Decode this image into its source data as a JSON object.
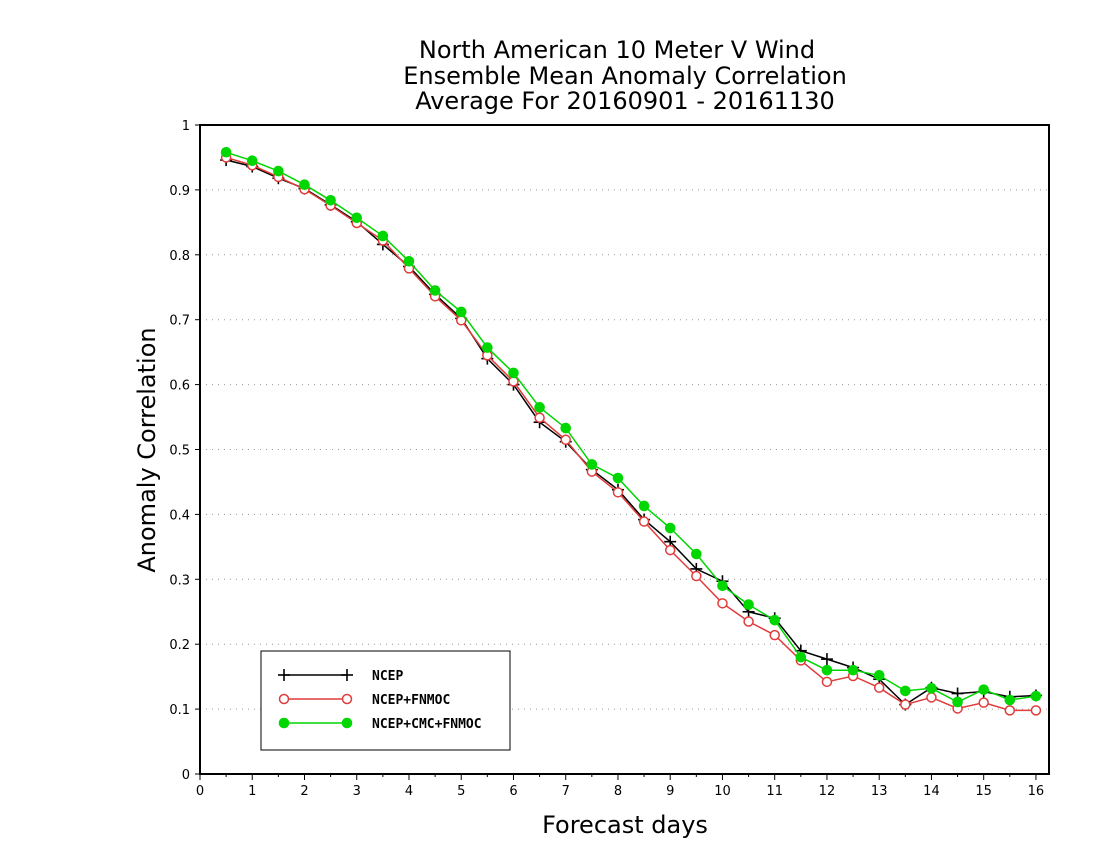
{
  "chart_data": {
    "type": "line",
    "title": [
      "North American 10 Meter V Wind",
      "Ensemble Mean Anomaly Correlation",
      "Average For 20160901 - 20161130"
    ],
    "xlabel": "Forecast days",
    "ylabel": "Anomaly Correlation",
    "xlim": [
      0,
      16.25
    ],
    "ylim": [
      0,
      1
    ],
    "xticks": [
      "0",
      "1",
      "2",
      "3",
      "4",
      "5",
      "6",
      "7",
      "8",
      "9",
      "10",
      "11",
      "12",
      "13",
      "14",
      "15",
      "16"
    ],
    "yticks": [
      "0",
      "0.1",
      "0.2",
      "0.3",
      "0.4",
      "0.5",
      "0.6",
      "0.7",
      "0.8",
      "0.9",
      "1"
    ],
    "grid": "horizontal dotted",
    "legend_position": "bottom-left",
    "x": [
      0.5,
      1.0,
      1.5,
      2.0,
      2.5,
      3.0,
      3.5,
      4.0,
      4.5,
      5.0,
      5.5,
      6.0,
      6.5,
      7.0,
      7.5,
      8.0,
      8.5,
      9.0,
      9.5,
      10.0,
      10.5,
      11.0,
      11.5,
      12.0,
      12.5,
      13.0,
      13.5,
      14.0,
      14.5,
      15.0,
      15.5,
      16.0
    ],
    "series": [
      {
        "name": "NCEP",
        "color": "#000000",
        "marker": "plus",
        "values": [
          0.946,
          0.936,
          0.918,
          0.902,
          0.877,
          0.851,
          0.816,
          0.782,
          0.739,
          0.702,
          0.64,
          0.6,
          0.542,
          0.512,
          0.469,
          0.438,
          0.392,
          0.358,
          0.316,
          0.297,
          0.25,
          0.24,
          0.19,
          0.177,
          0.164,
          0.146,
          0.107,
          0.133,
          0.124,
          0.127,
          0.119,
          0.121
        ]
      },
      {
        "name": "NCEP+FNMOC",
        "color": "#e03c3c",
        "marker": "open-circle",
        "values": [
          0.95,
          0.938,
          0.92,
          0.901,
          0.876,
          0.849,
          0.822,
          0.779,
          0.736,
          0.699,
          0.645,
          0.605,
          0.549,
          0.515,
          0.466,
          0.434,
          0.389,
          0.345,
          0.305,
          0.263,
          0.235,
          0.214,
          0.175,
          0.142,
          0.151,
          0.133,
          0.107,
          0.118,
          0.101,
          0.11,
          0.098,
          0.098
        ]
      },
      {
        "name": "NCEP+CMC+FNMOC",
        "color": "#00d600",
        "marker": "filled-circle",
        "values": [
          0.958,
          0.945,
          0.929,
          0.908,
          0.884,
          0.857,
          0.829,
          0.79,
          0.745,
          0.712,
          0.657,
          0.618,
          0.565,
          0.533,
          0.477,
          0.456,
          0.413,
          0.379,
          0.339,
          0.29,
          0.261,
          0.237,
          0.18,
          0.16,
          0.16,
          0.152,
          0.128,
          0.132,
          0.111,
          0.13,
          0.114,
          0.12
        ]
      }
    ]
  }
}
